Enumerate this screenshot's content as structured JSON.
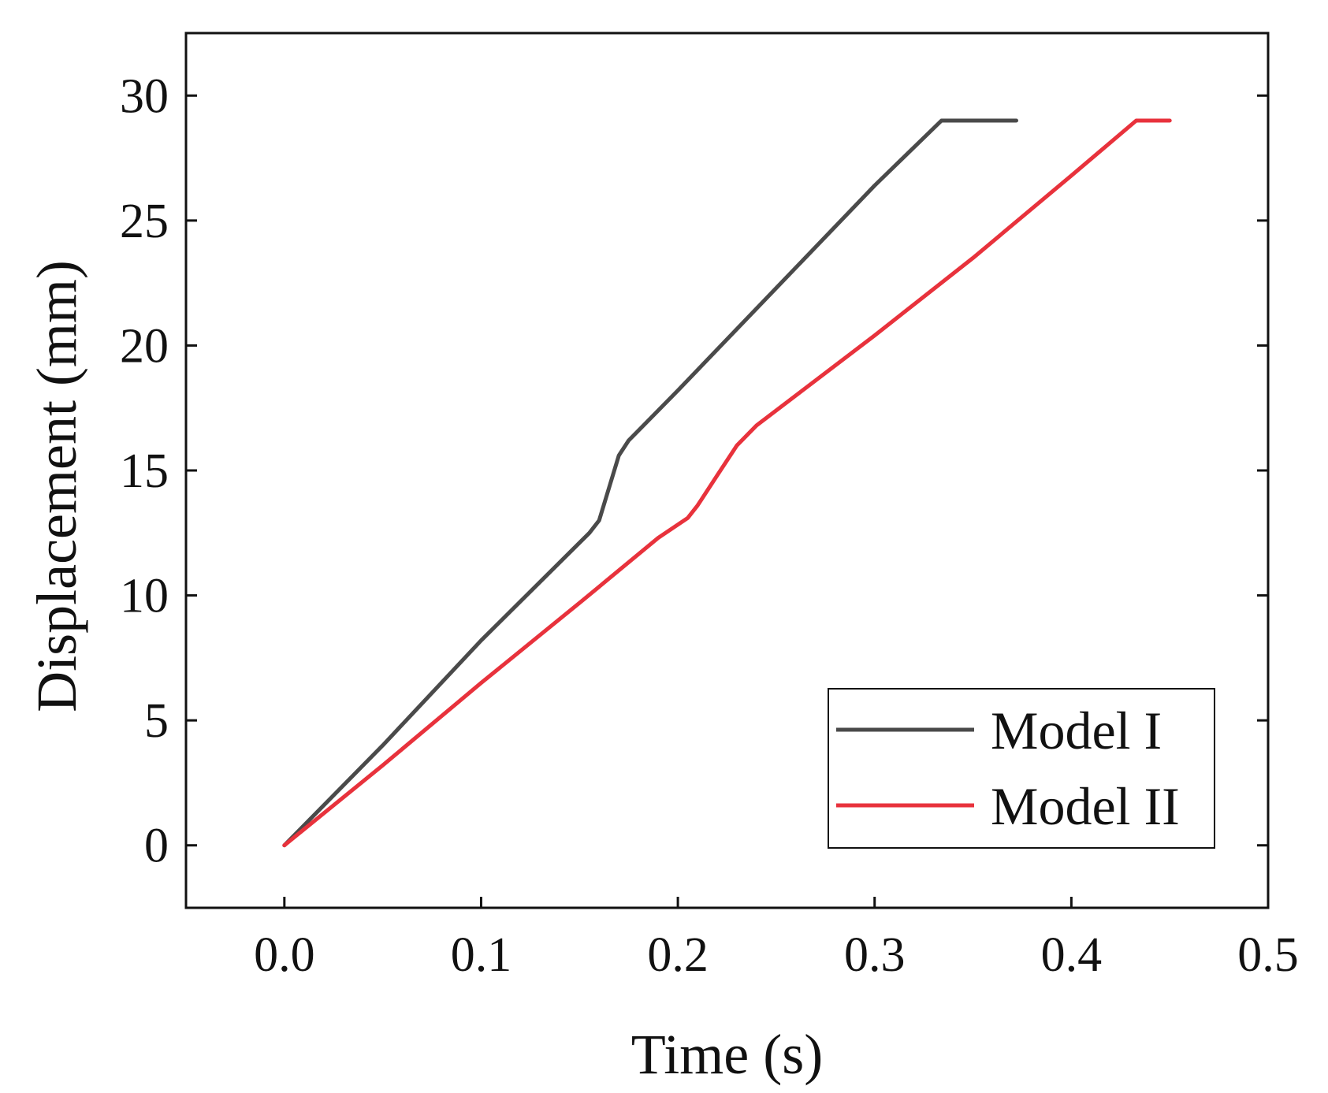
{
  "chart_data": {
    "type": "line",
    "title": "",
    "xlabel": "Time (s)",
    "ylabel": "Displacement (mm)",
    "xlim": [
      -0.05,
      0.5
    ],
    "ylim": [
      -2.5,
      32.5
    ],
    "xticks": [
      0.0,
      0.1,
      0.2,
      0.3,
      0.4,
      0.5
    ],
    "xtick_labels": [
      "0.0",
      "0.1",
      "0.2",
      "0.3",
      "0.4",
      "0.5"
    ],
    "yticks": [
      0,
      5,
      10,
      15,
      20,
      25,
      30
    ],
    "ytick_labels": [
      "0",
      "5",
      "10",
      "15",
      "20",
      "25",
      "30"
    ],
    "grid": false,
    "legend_position": "bottom-right",
    "series": [
      {
        "name": "Model I",
        "color": "#4a4a4a",
        "x": [
          0.0,
          0.05,
          0.1,
          0.155,
          0.16,
          0.165,
          0.17,
          0.175,
          0.18,
          0.2,
          0.25,
          0.3,
          0.334,
          0.372
        ],
        "y": [
          0.0,
          4.0,
          8.2,
          12.5,
          13.0,
          14.3,
          15.6,
          16.2,
          16.6,
          18.2,
          22.3,
          26.4,
          29.0,
          29.0
        ]
      },
      {
        "name": "Model II",
        "color": "#e8323c",
        "x": [
          0.0,
          0.05,
          0.1,
          0.15,
          0.19,
          0.205,
          0.21,
          0.22,
          0.23,
          0.24,
          0.3,
          0.35,
          0.4,
          0.433,
          0.45
        ],
        "y": [
          0.0,
          3.2,
          6.5,
          9.7,
          12.3,
          13.1,
          13.6,
          14.8,
          16.0,
          16.8,
          20.4,
          23.5,
          26.8,
          29.0,
          29.0
        ]
      }
    ]
  }
}
